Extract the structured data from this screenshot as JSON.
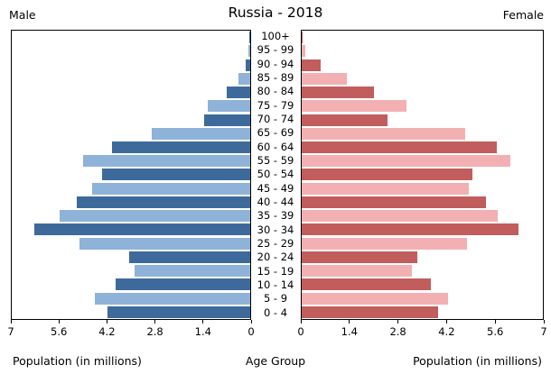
{
  "title": "Russia - 2018",
  "left_header": "Male",
  "right_header": "Female",
  "bottom_labels": {
    "left": "Population (in millions)",
    "center": "Age Group",
    "right": "Population (in millions)"
  },
  "colors": {
    "male_dark": "#3d6a9b",
    "male_light": "#8fb2d8",
    "female_dark": "#c15d5d",
    "female_light": "#f2b0b2",
    "axis": "#000000",
    "background": "#ffffff"
  },
  "chart_data": {
    "type": "bar",
    "subtype": "population-pyramid",
    "title": "Russia - 2018",
    "xlabel_left": "Population (in millions)",
    "xlabel_right": "Population (in millions)",
    "center_axis_label": "Age Group",
    "xlim": [
      0,
      7
    ],
    "ticks": [
      "0",
      "1.4",
      "2.8",
      "4.2",
      "5.6",
      "7"
    ],
    "grid": false,
    "legend_position": "top-corners",
    "categories_top_down": [
      "100+",
      "95 - 99",
      "90 - 94",
      "85 - 89",
      "80 - 84",
      "75 - 79",
      "70 - 74",
      "65 - 69",
      "60 - 64",
      "55 - 59",
      "50 - 54",
      "45 - 49",
      "40 - 44",
      "35 - 39",
      "30 - 34",
      "25 - 29",
      "20 - 24",
      "15 - 19",
      "10 - 14",
      "5 - 9",
      "0 - 4"
    ],
    "series": [
      {
        "name": "Male",
        "values_top_down": [
          0.03,
          0.06,
          0.12,
          0.35,
          0.7,
          1.25,
          1.35,
          2.9,
          4.05,
          4.9,
          4.35,
          4.65,
          5.1,
          5.6,
          6.35,
          5.0,
          3.55,
          3.4,
          3.95,
          4.55,
          4.2
        ]
      },
      {
        "name": "Female",
        "values_top_down": [
          0.03,
          0.1,
          0.55,
          1.3,
          2.1,
          3.05,
          2.5,
          4.75,
          5.65,
          6.05,
          4.95,
          4.85,
          5.35,
          5.7,
          6.3,
          4.8,
          3.35,
          3.2,
          3.75,
          4.25,
          3.95
        ]
      }
    ]
  }
}
